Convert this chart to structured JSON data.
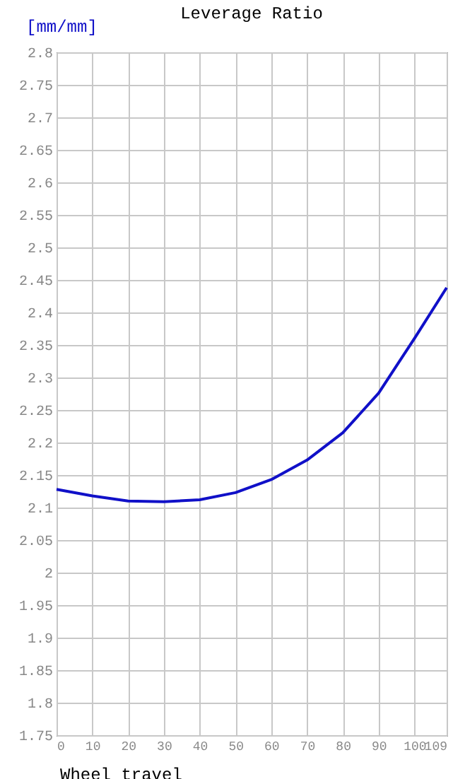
{
  "chart_data": {
    "type": "line",
    "title": "Leverage Ratio",
    "xlabel": "Wheel travel",
    "ylabel": "[mm/mm]",
    "x": [
      0,
      10,
      20,
      30,
      40,
      50,
      60,
      70,
      80,
      90,
      100,
      109
    ],
    "series": [
      {
        "color": "#1010c8",
        "values": [
          2.128,
          2.118,
          2.11,
          2.109,
          2.112,
          2.123,
          2.143,
          2.173,
          2.215,
          2.276,
          2.36,
          2.438
        ]
      }
    ],
    "xlim": [
      0,
      109
    ],
    "xticks": [
      0,
      10,
      20,
      30,
      40,
      50,
      60,
      70,
      80,
      90,
      100,
      109
    ],
    "ylim": [
      1.75,
      2.8
    ],
    "yticks": [
      1.75,
      1.8,
      1.85,
      1.9,
      1.95,
      2,
      2.05,
      2.1,
      2.15,
      2.2,
      2.25,
      2.3,
      2.35,
      2.4,
      2.45,
      2.5,
      2.55,
      2.6,
      2.65,
      2.7,
      2.75,
      2.8
    ],
    "grid": true,
    "marker": "none",
    "line_style": "solid"
  }
}
